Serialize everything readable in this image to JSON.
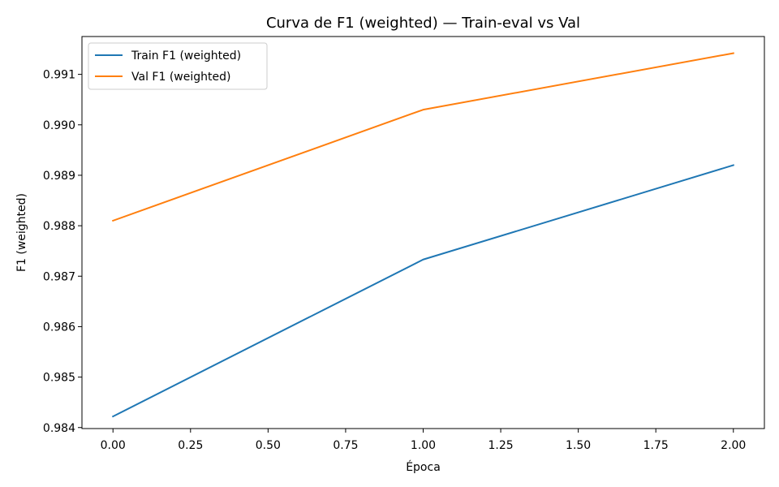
{
  "chart_data": {
    "type": "line",
    "title": "Curva de F1 (weighted) — Train-eval vs Val",
    "xlabel": "Época",
    "ylabel": "F1 (weighted)",
    "x": [
      0,
      1,
      2
    ],
    "xlim": [
      -0.1,
      2.1
    ],
    "ylim": [
      0.98398,
      0.99175
    ],
    "xticks": [
      0.0,
      0.25,
      0.5,
      0.75,
      1.0,
      1.25,
      1.5,
      1.75,
      2.0
    ],
    "xtick_labels": [
      "0.00",
      "0.25",
      "0.50",
      "0.75",
      "1.00",
      "1.25",
      "1.50",
      "1.75",
      "2.00"
    ],
    "yticks": [
      0.984,
      0.985,
      0.986,
      0.987,
      0.988,
      0.989,
      0.99,
      0.991
    ],
    "ytick_labels": [
      "0.984",
      "0.985",
      "0.986",
      "0.987",
      "0.988",
      "0.989",
      "0.990",
      "0.991"
    ],
    "grid": false,
    "legend_position": "top-left",
    "series": [
      {
        "name": "Train F1 (weighted)",
        "color": "#1f77b4",
        "values": [
          0.98422,
          0.98733,
          0.9892
        ]
      },
      {
        "name": "Val F1 (weighted)",
        "color": "#ff7f0e",
        "values": [
          0.9881,
          0.9903,
          0.99142
        ]
      }
    ]
  }
}
